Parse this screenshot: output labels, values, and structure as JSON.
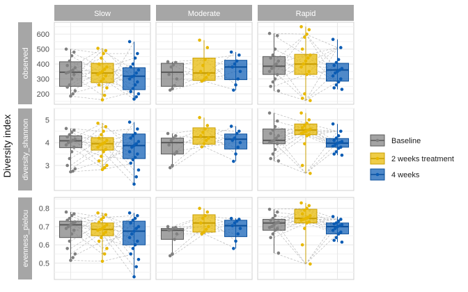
{
  "chart_data": {
    "type": "box",
    "ylabel": "Diversity index",
    "columns": [
      "Slow",
      "Moderate",
      "Rapid"
    ],
    "rows": [
      {
        "label": "observed",
        "ticks": [
          200,
          300,
          400,
          500,
          600
        ],
        "ylim": [
          130,
          680
        ]
      },
      {
        "label": "diversity_shannon",
        "ticks": [
          3,
          4,
          5
        ],
        "ylim": [
          1.9,
          5.5
        ]
      },
      {
        "label": "evenness_pielou",
        "ticks": [
          0.5,
          0.6,
          0.7,
          0.8
        ],
        "ylim": [
          0.41,
          0.86
        ]
      }
    ],
    "legend": {
      "position": "right",
      "entries": [
        {
          "label": "Baseline",
          "color": "#808080"
        },
        {
          "label": "2 weeks treatment",
          "color": "#E7B800"
        },
        {
          "label": "4 weeks",
          "color": "#0B5CB4"
        }
      ]
    },
    "boxes": [
      [
        [
          {
            "q1": 250,
            "median": 345,
            "q3": 415,
            "whisker_low": 185,
            "whisker_high": 500,
            "points": [
              500,
              480,
              455,
              420,
              390,
              375,
              360,
              350,
              345,
              340,
              330,
              300,
              260,
              245,
              220,
              200,
              185
            ]
          },
          {
            "q1": 275,
            "median": 340,
            "q3": 405,
            "whisker_low": 160,
            "whisker_high": 505,
            "points": [
              505,
              490,
              470,
              440,
              400,
              380,
              365,
              350,
              340,
              330,
              320,
              300,
              285,
              260,
              240,
              190,
              160
            ]
          },
          {
            "q1": 228,
            "median": 318,
            "q3": 375,
            "whisker_low": 165,
            "whisker_high": 550,
            "points": [
              550,
              470,
              440,
              400,
              380,
              360,
              340,
              320,
              315,
              300,
              280,
              260,
              235,
              215,
              200,
              180,
              165
            ]
          }
        ],
        [
          {
            "q1": 250,
            "median": 345,
            "q3": 405,
            "whisker_low": 225,
            "whisker_high": 415,
            "points": [
              415,
              410,
              395,
              380,
              330,
              300,
              255,
              235,
              225
            ]
          },
          {
            "q1": 290,
            "median": 340,
            "q3": 440,
            "whisker_low": 280,
            "whisker_high": 560,
            "points": [
              560,
              510,
              430,
              390,
              350,
              330,
              310,
              295,
              285
            ]
          },
          {
            "q1": 295,
            "median": 380,
            "q3": 425,
            "whisker_low": 225,
            "whisker_high": 480,
            "points": [
              480,
              460,
              420,
              400,
              380,
              350,
              300,
              260,
              225
            ]
          }
        ],
        [
          {
            "q1": 330,
            "median": 385,
            "q3": 450,
            "whisker_low": 220,
            "whisker_high": 605,
            "points": [
              605,
              590,
              500,
              460,
              440,
              420,
              400,
              385,
              370,
              350,
              330,
              300,
              280,
              250,
              220
            ]
          },
          {
            "q1": 330,
            "median": 400,
            "q3": 465,
            "whisker_low": 155,
            "whisker_high": 650,
            "points": [
              650,
              630,
              600,
              580,
              500,
              460,
              440,
              420,
              400,
              380,
              350,
              330,
              200,
              170,
              155
            ]
          },
          {
            "q1": 285,
            "median": 360,
            "q3": 405,
            "whisker_low": 230,
            "whisker_high": 565,
            "points": [
              565,
              510,
              430,
              410,
              390,
              370,
              360,
              350,
              340,
              320,
              300,
              280,
              260,
              240,
              230
            ]
          }
        ]
      ],
      [
        [
          {
            "q1": 3.78,
            "median": 4.08,
            "q3": 4.3,
            "whisker_low": 2.72,
            "whisker_high": 4.62,
            "points": [
              4.62,
              4.55,
              4.45,
              4.35,
              4.25,
              4.15,
              4.1,
              4.05,
              4.0,
              3.9,
              3.8,
              3.6,
              3.3,
              3.0,
              2.85,
              2.75,
              2.72
            ]
          },
          {
            "q1": 3.67,
            "median": 3.95,
            "q3": 4.22,
            "whisker_low": 2.82,
            "whisker_high": 4.85,
            "points": [
              4.85,
              4.7,
              4.5,
              4.35,
              4.2,
              4.1,
              4.0,
              3.95,
              3.9,
              3.8,
              3.7,
              3.6,
              3.4,
              3.2,
              3.0,
              2.9,
              2.82
            ]
          },
          {
            "q1": 3.3,
            "median": 3.87,
            "q3": 4.38,
            "whisker_low": 2.18,
            "whisker_high": 4.9,
            "points": [
              4.9,
              4.6,
              4.4,
              4.3,
              4.2,
              4.05,
              3.95,
              3.87,
              3.8,
              3.6,
              3.5,
              3.35,
              3.25,
              3.1,
              2.8,
              2.5,
              2.18
            ]
          }
        ],
        [
          {
            "q1": 3.5,
            "median": 4.0,
            "q3": 4.2,
            "whisker_low": 2.9,
            "whisker_high": 4.4,
            "points": [
              4.4,
              4.3,
              4.2,
              4.1,
              3.9,
              3.6,
              3.5,
              3.0,
              2.9
            ]
          },
          {
            "q1": 3.93,
            "median": 4.25,
            "q3": 4.65,
            "whisker_low": 3.82,
            "whisker_high": 5.1,
            "points": [
              5.1,
              4.75,
              4.6,
              4.45,
              4.3,
              4.2,
              4.1,
              3.95,
              3.82
            ]
          },
          {
            "q1": 3.72,
            "median": 4.15,
            "q3": 4.38,
            "whisker_low": 3.18,
            "whisker_high": 4.72,
            "points": [
              4.72,
              4.5,
              4.4,
              4.2,
              4.1,
              4.0,
              3.8,
              3.5,
              3.18
            ]
          }
        ],
        [
          {
            "q1": 3.95,
            "median": 4.1,
            "q3": 4.6,
            "whisker_low": 3.2,
            "whisker_high": 5.3,
            "points": [
              5.3,
              4.95,
              4.7,
              4.55,
              4.4,
              4.3,
              4.2,
              4.1,
              4.05,
              4.0,
              3.95,
              3.7,
              3.5,
              3.3,
              3.2
            ]
          },
          {
            "q1": 4.35,
            "median": 4.55,
            "q3": 4.82,
            "whisker_low": 2.65,
            "whisker_high": 5.3,
            "points": [
              5.3,
              5.0,
              4.85,
              4.75,
              4.65,
              4.6,
              4.55,
              4.5,
              4.45,
              4.4,
              4.35,
              4.3,
              3.95,
              3.0,
              2.65
            ]
          },
          {
            "q1": 3.8,
            "median": 3.98,
            "q3": 4.18,
            "whisker_low": 3.45,
            "whisker_high": 4.82,
            "points": [
              4.82,
              4.5,
              4.3,
              4.2,
              4.1,
              4.05,
              4.0,
              3.98,
              3.9,
              3.85,
              3.8,
              3.75,
              3.6,
              3.5,
              3.45
            ]
          }
        ]
      ],
      [
        [
          {
            "q1": 0.64,
            "median": 0.71,
            "q3": 0.73,
            "whisker_low": 0.515,
            "whisker_high": 0.78,
            "points": [
              0.78,
              0.77,
              0.76,
              0.745,
              0.735,
              0.725,
              0.72,
              0.71,
              0.7,
              0.69,
              0.68,
              0.66,
              0.62,
              0.58,
              0.55,
              0.53,
              0.515
            ]
          },
          {
            "q1": 0.65,
            "median": 0.685,
            "q3": 0.72,
            "whisker_low": 0.51,
            "whisker_high": 0.775,
            "points": [
              0.775,
              0.765,
              0.75,
              0.74,
              0.725,
              0.71,
              0.7,
              0.69,
              0.685,
              0.68,
              0.67,
              0.66,
              0.64,
              0.62,
              0.58,
              0.55,
              0.51
            ]
          },
          {
            "q1": 0.6,
            "median": 0.675,
            "q3": 0.73,
            "whisker_low": 0.425,
            "whisker_high": 0.775,
            "points": [
              0.775,
              0.76,
              0.745,
              0.735,
              0.72,
              0.7,
              0.69,
              0.675,
              0.66,
              0.64,
              0.62,
              0.6,
              0.58,
              0.55,
              0.52,
              0.48,
              0.425
            ]
          }
        ],
        [
          {
            "q1": 0.63,
            "median": 0.68,
            "q3": 0.69,
            "whisker_low": 0.54,
            "whisker_high": 0.7,
            "points": [
              0.7,
              0.695,
              0.69,
              0.685,
              0.68,
              0.66,
              0.63,
              0.55,
              0.54
            ]
          },
          {
            "q1": 0.67,
            "median": 0.72,
            "q3": 0.765,
            "whisker_low": 0.66,
            "whisker_high": 0.8,
            "points": [
              0.8,
              0.78,
              0.76,
              0.745,
              0.72,
              0.7,
              0.685,
              0.67,
              0.66
            ]
          },
          {
            "q1": 0.645,
            "median": 0.705,
            "q3": 0.735,
            "whisker_low": 0.58,
            "whisker_high": 0.745,
            "points": [
              0.745,
              0.74,
              0.73,
              0.72,
              0.705,
              0.69,
              0.66,
              0.62,
              0.58
            ]
          }
        ],
        [
          {
            "q1": 0.68,
            "median": 0.72,
            "q3": 0.74,
            "whisker_low": 0.555,
            "whisker_high": 0.795,
            "points": [
              0.795,
              0.78,
              0.76,
              0.745,
              0.735,
              0.725,
              0.72,
              0.71,
              0.7,
              0.695,
              0.69,
              0.68,
              0.66,
              0.64,
              0.555
            ]
          },
          {
            "q1": 0.72,
            "median": 0.745,
            "q3": 0.795,
            "whisker_low": 0.495,
            "whisker_high": 0.83,
            "points": [
              0.83,
              0.815,
              0.8,
              0.79,
              0.77,
              0.76,
              0.75,
              0.745,
              0.74,
              0.735,
              0.725,
              0.72,
              0.69,
              0.6,
              0.495
            ]
          },
          {
            "q1": 0.66,
            "median": 0.7,
            "q3": 0.72,
            "whisker_low": 0.615,
            "whisker_high": 0.755,
            "points": [
              0.755,
              0.74,
              0.73,
              0.72,
              0.715,
              0.71,
              0.705,
              0.7,
              0.69,
              0.68,
              0.67,
              0.66,
              0.64,
              0.625,
              0.615
            ]
          }
        ]
      ]
    ]
  }
}
